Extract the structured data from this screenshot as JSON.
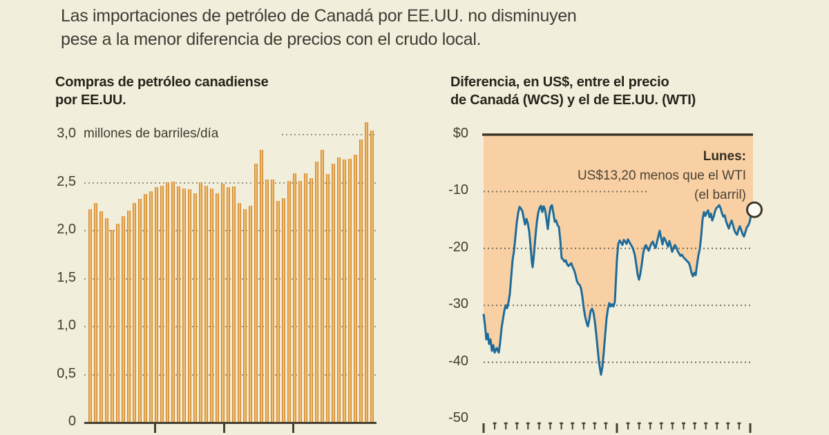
{
  "header": {
    "line1": "Las importaciones de petróleo de Canadá por EE.UU. no disminuyen",
    "line2": "pese a la menor diferencia de precios con el crudo local."
  },
  "chart_data": [
    {
      "type": "bar",
      "title_line1": "Compras de petróleo canadiense",
      "title_line2": "por EE.UU.",
      "unit_label": "millones de barriles/día",
      "ylabel": "millones de barriles/día",
      "ylim": [
        0,
        3.0
      ],
      "y_tick_values": [
        3.0,
        2.5,
        2.0,
        1.5,
        1.0,
        0.5,
        0
      ],
      "y_tick_labels": [
        "3,0",
        "2,5",
        "2,0",
        "1,5",
        "1,0",
        "0,5",
        "0"
      ],
      "grid": "dotted",
      "x_axis_ticks": 3,
      "values": [
        2.22,
        2.29,
        2.2,
        2.13,
        2.01,
        2.07,
        2.15,
        2.21,
        2.29,
        2.33,
        2.38,
        2.41,
        2.45,
        2.47,
        2.5,
        2.51,
        2.46,
        2.44,
        2.43,
        2.39,
        2.5,
        2.47,
        2.44,
        2.39,
        2.49,
        2.45,
        2.46,
        2.29,
        2.22,
        2.26,
        2.7,
        2.84,
        2.53,
        2.53,
        2.31,
        2.34,
        2.52,
        2.6,
        2.52,
        2.6,
        2.55,
        2.72,
        2.84,
        2.59,
        2.7,
        2.76,
        2.74,
        2.75,
        2.79,
        2.95,
        3.13,
        3.04
      ],
      "bar_color_dark": "#d28a31",
      "bar_color_light": "#f6c87e"
    },
    {
      "type": "line",
      "title_line1": "Diferencia, en US$, entre el precio",
      "title_line2": "de Canadá (WCS) y el de EE.UU. (WTI)",
      "ylim": [
        -50,
        0
      ],
      "y_tick_values": [
        0,
        -10,
        -20,
        -30,
        -40,
        -50
      ],
      "y_tick_labels": [
        "$0",
        "-10",
        "-20",
        "-30",
        "-40",
        "-50"
      ],
      "grid": "dotted",
      "annotation": {
        "title": "Lunes:",
        "line1": "US$13,20 menos que el WTI",
        "line2": "(el barril)"
      },
      "last_value": -13.2,
      "line_color": "#1e6b99",
      "area_color": "#f8d0a3",
      "zero_line_color": "#3c372b",
      "points": [
        [
          700,
          -31.5
        ],
        [
          702,
          -33.5
        ],
        [
          704,
          -36
        ],
        [
          706,
          -35
        ],
        [
          708,
          -36.8
        ],
        [
          710,
          -36
        ],
        [
          712,
          -38
        ],
        [
          714,
          -37
        ],
        [
          716,
          -38.3
        ],
        [
          719,
          -37.5
        ],
        [
          722,
          -38.3
        ],
        [
          724,
          -36.5
        ],
        [
          726,
          -34
        ],
        [
          728,
          -32.5
        ],
        [
          730,
          -31
        ],
        [
          732,
          -30
        ],
        [
          734,
          -30.5
        ],
        [
          736,
          -29.5
        ],
        [
          738,
          -28
        ],
        [
          740,
          -25
        ],
        [
          742,
          -22
        ],
        [
          744,
          -20.5
        ],
        [
          746,
          -18
        ],
        [
          748,
          -15.5
        ],
        [
          750,
          -13.8
        ],
        [
          752,
          -12.7
        ],
        [
          754,
          -13
        ],
        [
          756,
          -13.4
        ],
        [
          758,
          -14.6
        ],
        [
          760,
          -15.8
        ],
        [
          762,
          -14.8
        ],
        [
          764,
          -15.6
        ],
        [
          766,
          -17
        ],
        [
          768,
          -19.5
        ],
        [
          770,
          -22.5
        ],
        [
          771,
          -23.3
        ],
        [
          773,
          -21
        ],
        [
          775,
          -18
        ],
        [
          777,
          -15.5
        ],
        [
          779,
          -13.8
        ],
        [
          781,
          -12.9
        ],
        [
          783,
          -12.5
        ],
        [
          785,
          -13.6
        ],
        [
          787,
          -12.6
        ],
        [
          789,
          -13.2
        ],
        [
          791,
          -14.8
        ],
        [
          793,
          -16.6
        ],
        [
          795,
          -14.2
        ],
        [
          797,
          -12.7
        ],
        [
          799,
          -12.4
        ],
        [
          801,
          -13.8
        ],
        [
          803,
          -15.3
        ],
        [
          805,
          -15.1
        ],
        [
          807,
          -15.9
        ],
        [
          809,
          -16.2
        ],
        [
          811,
          -18.5
        ],
        [
          813,
          -21.7
        ],
        [
          815,
          -21.9
        ],
        [
          817,
          -22.3
        ],
        [
          819,
          -22.1
        ],
        [
          821,
          -22.8
        ],
        [
          823,
          -23.1
        ],
        [
          825,
          -22.8
        ],
        [
          827,
          -22.6
        ],
        [
          829,
          -23.3
        ],
        [
          831,
          -23.8
        ],
        [
          833,
          -24.6
        ],
        [
          835,
          -25.7
        ],
        [
          837,
          -26.2
        ],
        [
          839,
          -26.4
        ],
        [
          841,
          -27
        ],
        [
          843,
          -28.5
        ],
        [
          845,
          -30.5
        ],
        [
          847,
          -32
        ],
        [
          849,
          -33
        ],
        [
          851,
          -33.7
        ],
        [
          853,
          -32.5
        ],
        [
          855,
          -31
        ],
        [
          857,
          -30.6
        ],
        [
          859,
          -31.2
        ],
        [
          861,
          -32.8
        ],
        [
          863,
          -35
        ],
        [
          865,
          -37.5
        ],
        [
          867,
          -40
        ],
        [
          869,
          -41.5
        ],
        [
          870,
          -42.2
        ],
        [
          872,
          -40.8
        ],
        [
          874,
          -38.2
        ],
        [
          876,
          -35.2
        ],
        [
          878,
          -32.3
        ],
        [
          880,
          -30.6
        ],
        [
          882,
          -29.6
        ],
        [
          884,
          -30.2
        ],
        [
          886,
          -29.8
        ],
        [
          888,
          -30.2
        ],
        [
          890,
          -29.4
        ],
        [
          891,
          -27
        ],
        [
          893,
          -22
        ],
        [
          895,
          -19.2
        ],
        [
          897,
          -18.6
        ],
        [
          899,
          -19
        ],
        [
          901,
          -19.4
        ],
        [
          903,
          -18.5
        ],
        [
          905,
          -18.8
        ],
        [
          907,
          -19.2
        ],
        [
          909,
          -18.4
        ],
        [
          911,
          -18.9
        ],
        [
          913,
          -19.3
        ],
        [
          915,
          -19.7
        ],
        [
          917,
          -20.3
        ],
        [
          919,
          -21.2
        ],
        [
          921,
          -22.8
        ],
        [
          923,
          -24.6
        ],
        [
          925,
          -25.5
        ],
        [
          927,
          -24.4
        ],
        [
          929,
          -22.8
        ],
        [
          931,
          -20.9
        ],
        [
          933,
          -19.8
        ],
        [
          935,
          -19.4
        ],
        [
          937,
          -19.9
        ],
        [
          939,
          -20.4
        ],
        [
          941,
          -19.7
        ],
        [
          943,
          -19.1
        ],
        [
          945,
          -18.8
        ],
        [
          947,
          -19.5
        ],
        [
          949,
          -19.9
        ],
        [
          951,
          -18.9
        ],
        [
          953,
          -17.8
        ],
        [
          955,
          -16.9
        ],
        [
          957,
          -18.2
        ],
        [
          959,
          -19.3
        ],
        [
          961,
          -18.1
        ],
        [
          963,
          -18.5
        ],
        [
          965,
          -19.1
        ],
        [
          967,
          -19.7
        ],
        [
          969,
          -18.7
        ],
        [
          971,
          -19.6
        ],
        [
          973,
          -20.6
        ],
        [
          975,
          -19.9
        ],
        [
          977,
          -19.4
        ],
        [
          979,
          -19.8
        ],
        [
          981,
          -20.5
        ],
        [
          983,
          -20.9
        ],
        [
          985,
          -21.3
        ],
        [
          987,
          -21.1
        ],
        [
          989,
          -21.5
        ],
        [
          991,
          -21.8
        ],
        [
          993,
          -22
        ],
        [
          995,
          -22.3
        ],
        [
          997,
          -22.5
        ],
        [
          999,
          -23.2
        ],
        [
          1001,
          -24.3
        ],
        [
          1003,
          -24.9
        ],
        [
          1005,
          -24.3
        ],
        [
          1007,
          -24.7
        ],
        [
          1009,
          -22.8
        ],
        [
          1011,
          -21.2
        ],
        [
          1013,
          -20.1
        ],
        [
          1015,
          -17.8
        ],
        [
          1017,
          -14.9
        ],
        [
          1019,
          -13.6
        ],
        [
          1021,
          -14.3
        ],
        [
          1023,
          -13.7
        ],
        [
          1025,
          -13.3
        ],
        [
          1027,
          -14.5
        ],
        [
          1029,
          -13.9
        ],
        [
          1031,
          -15.1
        ],
        [
          1033,
          -14.4
        ],
        [
          1035,
          -13.5
        ],
        [
          1037,
          -12.9
        ],
        [
          1039,
          -12.7
        ],
        [
          1041,
          -12.4
        ],
        [
          1043,
          -12.9
        ],
        [
          1045,
          -13.8
        ],
        [
          1047,
          -14.4
        ],
        [
          1049,
          -14.2
        ],
        [
          1051,
          -15.2
        ],
        [
          1053,
          -15.9
        ],
        [
          1055,
          -16.5
        ],
        [
          1057,
          -15.7
        ],
        [
          1059,
          -15.1
        ],
        [
          1061,
          -15.9
        ],
        [
          1063,
          -16.8
        ],
        [
          1065,
          -17.3
        ],
        [
          1067,
          -17.6
        ],
        [
          1069,
          -16.7
        ],
        [
          1071,
          -16.1
        ],
        [
          1073,
          -16.8
        ],
        [
          1075,
          -17.5
        ],
        [
          1077,
          -17.9
        ],
        [
          1079,
          -17.1
        ],
        [
          1081,
          -16.3
        ],
        [
          1083,
          -16
        ],
        [
          1085,
          -15.4
        ],
        [
          1087,
          -14.3
        ],
        [
          1088,
          -13.2
        ]
      ]
    }
  ],
  "colors": {
    "background": "#f2eedc",
    "headline_text": "#3d3d34",
    "axis_text": "#413d30",
    "baseline": "#453f31",
    "gridline": "#97907c"
  }
}
